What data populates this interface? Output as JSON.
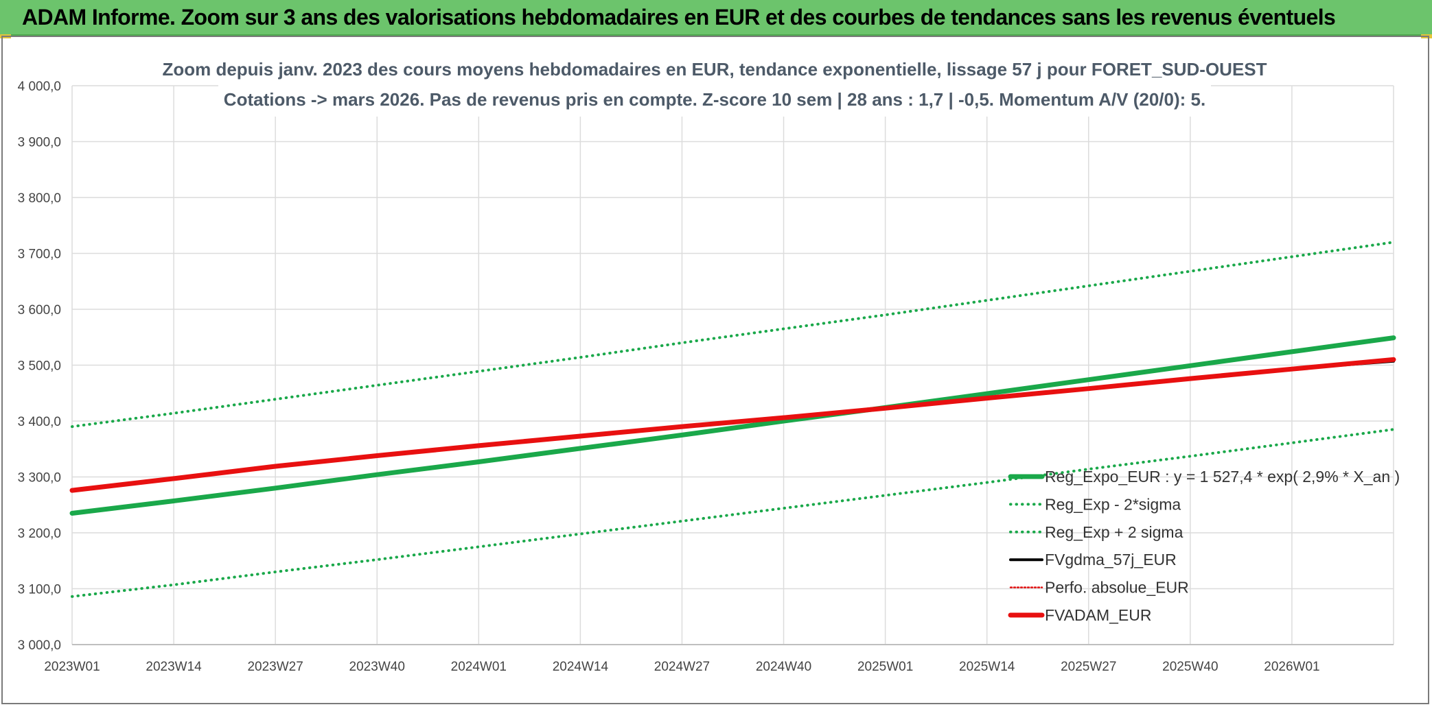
{
  "banner": {
    "title": "ADAM Informe. Zoom sur 3 ans des valorisations hebdomadaires en EUR et des courbes de tendances sans les revenus éventuels"
  },
  "chart_data": {
    "type": "line",
    "title_line1": "Zoom depuis janv. 2023 des cours moyens hebdomadaires en EUR, tendance exponentielle, lissage 57 j pour FORET_SUD-OUEST",
    "title_line2": "Cotations -> mars 2026. Pas de revenus pris en compte. Z-score 10 sem | 28 ans : 1,7 | -0,5. Momentum A/V (20/0): 5.",
    "ylim": [
      3000,
      4000
    ],
    "ytick_labels": [
      "3 000,0",
      "3 100,0",
      "3 200,0",
      "3 300,0",
      "3 400,0",
      "3 500,0",
      "3 600,0",
      "3 700,0",
      "3 800,0",
      "3 900,0",
      "4 000,0"
    ],
    "xtick_labels": [
      "2023W01",
      "2023W14",
      "2023W27",
      "2023W40",
      "2024W01",
      "2024W14",
      "2024W27",
      "2024W40",
      "2025W01",
      "2025W14",
      "2025W27",
      "2025W40",
      "2026W01"
    ],
    "x_weeks": [
      0,
      13,
      26,
      39,
      52,
      65,
      78,
      91,
      104,
      117,
      130,
      143,
      156,
      169
    ],
    "grid": true,
    "legend_position": "bottom-right",
    "series": [
      {
        "name": "Reg_Expo_EUR : y = 1 527,4 * exp( 2,9% *  X_an )",
        "color": "#1aa84a",
        "style": "solid",
        "width": "thick",
        "values": [
          3235,
          3257,
          3280,
          3304,
          3327,
          3351,
          3375,
          3400,
          3424,
          3449,
          3474,
          3499,
          3524,
          3549
        ]
      },
      {
        "name": "Reg_Exp - 2*sigma",
        "color": "#1aa84a",
        "style": "dotted",
        "width": "medium",
        "values": [
          3086,
          3107,
          3130,
          3152,
          3175,
          3198,
          3221,
          3244,
          3267,
          3290,
          3314,
          3337,
          3361,
          3385
        ]
      },
      {
        "name": "Reg_Exp + 2 sigma",
        "color": "#1aa84a",
        "style": "dotted",
        "width": "medium",
        "values": [
          3390,
          3414,
          3439,
          3464,
          3489,
          3514,
          3540,
          3565,
          3590,
          3616,
          3642,
          3668,
          3694,
          3720
        ]
      },
      {
        "name": "FVgdma_57j_EUR",
        "color": "#000000",
        "style": "solid",
        "width": "medium",
        "values": [
          3276,
          3297,
          3319,
          3338,
          3356,
          3373,
          3390,
          3406,
          3423,
          3441,
          3458,
          3476,
          3493,
          3507
        ]
      },
      {
        "name": "Perfo. absolue_EUR",
        "color": "#e01010",
        "style": "dotted",
        "width": "thin",
        "values": [
          3276,
          3297,
          3319,
          3338,
          3356,
          3373,
          3390,
          3406,
          3423,
          3441,
          3458,
          3476,
          3493,
          3510
        ]
      },
      {
        "name": "FVADAM_EUR",
        "color": "#e81010",
        "style": "solid",
        "width": "thick",
        "values": [
          3276,
          3297,
          3319,
          3338,
          3356,
          3373,
          3390,
          3406,
          3423,
          3441,
          3458,
          3476,
          3493,
          3510
        ]
      }
    ]
  }
}
